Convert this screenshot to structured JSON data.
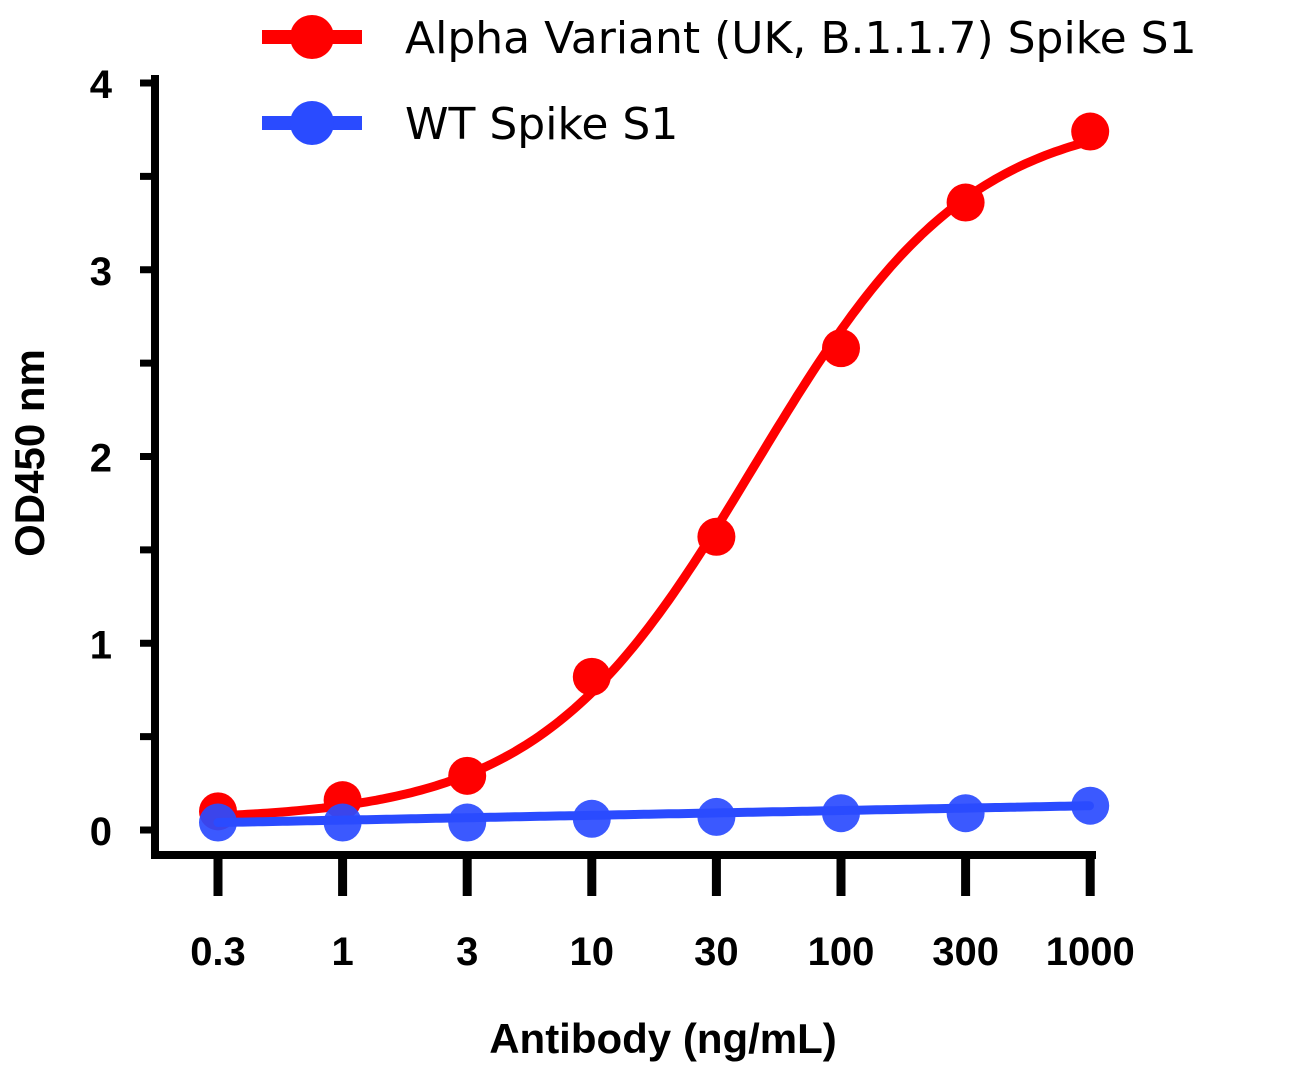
{
  "chart_data": {
    "type": "line",
    "title": "",
    "xlabel": "Antibody (ng/mL)",
    "ylabel": "OD450 nm",
    "x_scale": "log",
    "categories": [
      "0.3",
      "1",
      "3",
      "10",
      "30",
      "100",
      "300",
      "1000"
    ],
    "x": [
      0.3,
      1,
      3,
      10,
      30,
      100,
      300,
      1000
    ],
    "ylim": [
      0,
      4
    ],
    "yticks": [
      "0",
      "1",
      "2",
      "3",
      "4"
    ],
    "grid": false,
    "legend_position": "top",
    "series": [
      {
        "name": "Alpha Variant (UK, B.1.1.7) Spike S1",
        "color": "#ff0000",
        "values": [
          0.1,
          0.16,
          0.29,
          0.82,
          1.57,
          2.58,
          3.36,
          3.74
        ],
        "curve": "fitted sigmoid"
      },
      {
        "name": "WT Spike S1",
        "color": "#2a4bff",
        "values": [
          0.04,
          0.04,
          0.04,
          0.06,
          0.07,
          0.09,
          0.09,
          0.13
        ],
        "curve": "fitted"
      }
    ]
  }
}
